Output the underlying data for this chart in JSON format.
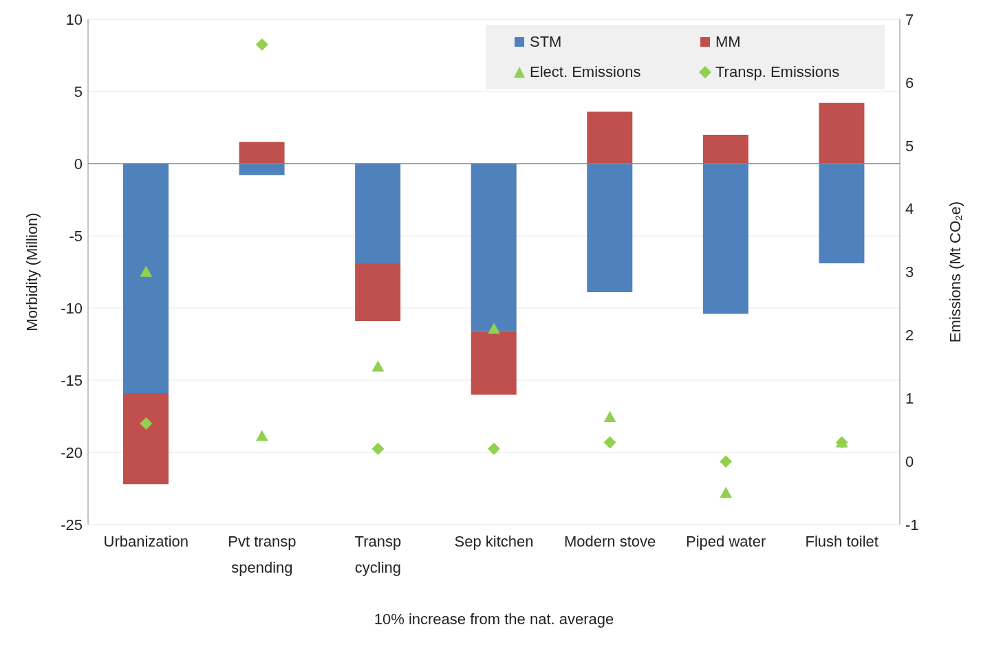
{
  "chart_data": {
    "type": "bar",
    "stacked": true,
    "xlabel": "10% increase from the nat. average",
    "ylabel": "Morbidity (Million)",
    "y2label": "Emissions (Mt CO₂e)",
    "categories": [
      "Urbanization",
      "Pvt transp spending",
      "Transp cycling",
      "Sep kitchen",
      "Modern stove",
      "Piped water",
      "Flush toilet"
    ],
    "series": [
      {
        "name": "STM",
        "color": "#4f81bd",
        "values": [
          -15.9,
          -0.8,
          -6.9,
          -11.6,
          -8.9,
          -10.4,
          -6.9
        ]
      },
      {
        "name": "MM",
        "color": "#c0504d",
        "values": [
          -6.3,
          1.5,
          -4.0,
          -4.4,
          3.6,
          2.0,
          4.2
        ]
      },
      {
        "name": "Elect. Emissions",
        "type": "scatter",
        "axis": "y2",
        "marker": "triangle",
        "color": "#92d050",
        "values": [
          3.0,
          0.4,
          1.5,
          2.1,
          0.7,
          -0.5,
          0.3
        ]
      },
      {
        "name": "Transp. Emissions",
        "type": "scatter",
        "axis": "y2",
        "marker": "diamond",
        "color": "#92d050",
        "values": [
          0.6,
          6.6,
          0.2,
          0.2,
          0.3,
          0.0,
          0.3
        ]
      }
    ],
    "ylim": [
      -25,
      10
    ],
    "yticks": [
      -25,
      -20,
      -15,
      -10,
      -5,
      0,
      5,
      10
    ],
    "y2lim": [
      -1,
      7
    ],
    "y2ticks": [
      -1,
      0,
      1,
      2,
      3,
      4,
      5,
      6,
      7
    ],
    "grid": "y",
    "legend": "top right"
  }
}
